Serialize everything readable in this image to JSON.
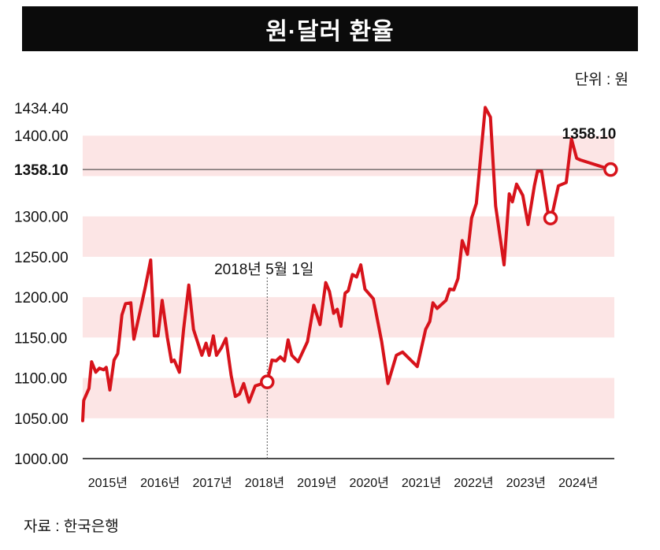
{
  "title": "원·달러 환율",
  "unit": "단위 : 원",
  "source": "자료 : 한국은행",
  "chart_data": {
    "type": "line",
    "title": "원·달러 환율",
    "ylim": [
      1000,
      1434.4
    ],
    "y_ticks": [
      "1000.00",
      "1050.00",
      "1100.00",
      "1150.00",
      "1200.00",
      "1250.00",
      "1300.00",
      "1358.10",
      "1400.00",
      "1434.40"
    ],
    "x_ticks": [
      "2015년",
      "2016년",
      "2017년",
      "2018년",
      "2019년",
      "2020년",
      "2021년",
      "2022년",
      "2023년",
      "2024년"
    ],
    "reference_line": {
      "value": 1358.1,
      "label": "1358.10"
    },
    "annotations": [
      {
        "label": "2018년 5월 1일",
        "x": 2018.33,
        "y": 1095
      },
      {
        "label": "1358.10",
        "x": 2024.9,
        "y": 1358.1
      }
    ],
    "highlight_points": [
      {
        "x": 2018.33,
        "y": 1095
      },
      {
        "x": 2023.75,
        "y": 1298
      },
      {
        "x": 2024.9,
        "y": 1358.1
      }
    ],
    "colors": {
      "line": "#d7131b",
      "band": "#fce5e5",
      "title_bg": "#0b0b0b"
    },
    "series": [
      {
        "points": [
          [
            2014.8,
            1047
          ],
          [
            2014.82,
            1072
          ],
          [
            2014.92,
            1087
          ],
          [
            2014.97,
            1120
          ],
          [
            2015.05,
            1107
          ],
          [
            2015.12,
            1112
          ],
          [
            2015.2,
            1110
          ],
          [
            2015.25,
            1113
          ],
          [
            2015.32,
            1085
          ],
          [
            2015.4,
            1122
          ],
          [
            2015.47,
            1130
          ],
          [
            2015.55,
            1178
          ],
          [
            2015.62,
            1192
          ],
          [
            2015.72,
            1193
          ],
          [
            2015.78,
            1148
          ],
          [
            2015.9,
            1183
          ],
          [
            2016.0,
            1213
          ],
          [
            2016.1,
            1246
          ],
          [
            2016.17,
            1152
          ],
          [
            2016.24,
            1152
          ],
          [
            2016.32,
            1196
          ],
          [
            2016.42,
            1150
          ],
          [
            2016.5,
            1120
          ],
          [
            2016.55,
            1122
          ],
          [
            2016.65,
            1107
          ],
          [
            2016.73,
            1160
          ],
          [
            2016.83,
            1215
          ],
          [
            2016.92,
            1160
          ],
          [
            2017.0,
            1144
          ],
          [
            2017.08,
            1128
          ],
          [
            2017.16,
            1143
          ],
          [
            2017.22,
            1128
          ],
          [
            2017.3,
            1152
          ],
          [
            2017.36,
            1128
          ],
          [
            2017.45,
            1137
          ],
          [
            2017.54,
            1149
          ],
          [
            2017.64,
            1103
          ],
          [
            2017.72,
            1077
          ],
          [
            2017.8,
            1080
          ],
          [
            2017.88,
            1093
          ],
          [
            2017.98,
            1070
          ],
          [
            2018.1,
            1090
          ],
          [
            2018.33,
            1095
          ],
          [
            2018.42,
            1122
          ],
          [
            2018.5,
            1121
          ],
          [
            2018.58,
            1126
          ],
          [
            2018.66,
            1121
          ],
          [
            2018.73,
            1147
          ],
          [
            2018.8,
            1128
          ],
          [
            2018.92,
            1120
          ],
          [
            2019.1,
            1145
          ],
          [
            2019.22,
            1190
          ],
          [
            2019.34,
            1166
          ],
          [
            2019.45,
            1218
          ],
          [
            2019.52,
            1207
          ],
          [
            2019.6,
            1180
          ],
          [
            2019.67,
            1185
          ],
          [
            2019.74,
            1164
          ],
          [
            2019.82,
            1205
          ],
          [
            2019.88,
            1208
          ],
          [
            2019.96,
            1228
          ],
          [
            2020.04,
            1225
          ],
          [
            2020.12,
            1240
          ],
          [
            2020.2,
            1210
          ],
          [
            2020.36,
            1198
          ],
          [
            2020.52,
            1145
          ],
          [
            2020.64,
            1093
          ],
          [
            2020.8,
            1128
          ],
          [
            2020.92,
            1132
          ],
          [
            2021.2,
            1114
          ],
          [
            2021.36,
            1160
          ],
          [
            2021.44,
            1170
          ],
          [
            2021.5,
            1193
          ],
          [
            2021.58,
            1186
          ],
          [
            2021.75,
            1196
          ],
          [
            2021.82,
            1210
          ],
          [
            2021.9,
            1209
          ],
          [
            2021.98,
            1223
          ],
          [
            2022.06,
            1270
          ],
          [
            2022.16,
            1253
          ],
          [
            2022.24,
            1298
          ],
          [
            2022.33,
            1316
          ],
          [
            2022.5,
            1435
          ],
          [
            2022.6,
            1423
          ],
          [
            2022.7,
            1313
          ],
          [
            2022.86,
            1240
          ],
          [
            2022.96,
            1328
          ],
          [
            2023.02,
            1318
          ],
          [
            2023.1,
            1340
          ],
          [
            2023.22,
            1326
          ],
          [
            2023.32,
            1290
          ],
          [
            2023.44,
            1338
          ],
          [
            2023.5,
            1356
          ],
          [
            2023.58,
            1356
          ],
          [
            2023.7,
            1305
          ],
          [
            2023.75,
            1298
          ],
          [
            2023.8,
            1308
          ],
          [
            2023.9,
            1338
          ],
          [
            2024.05,
            1342
          ],
          [
            2024.15,
            1396
          ],
          [
            2024.25,
            1372
          ],
          [
            2024.32,
            1370
          ],
          [
            2024.9,
            1358.1
          ]
        ]
      }
    ]
  }
}
